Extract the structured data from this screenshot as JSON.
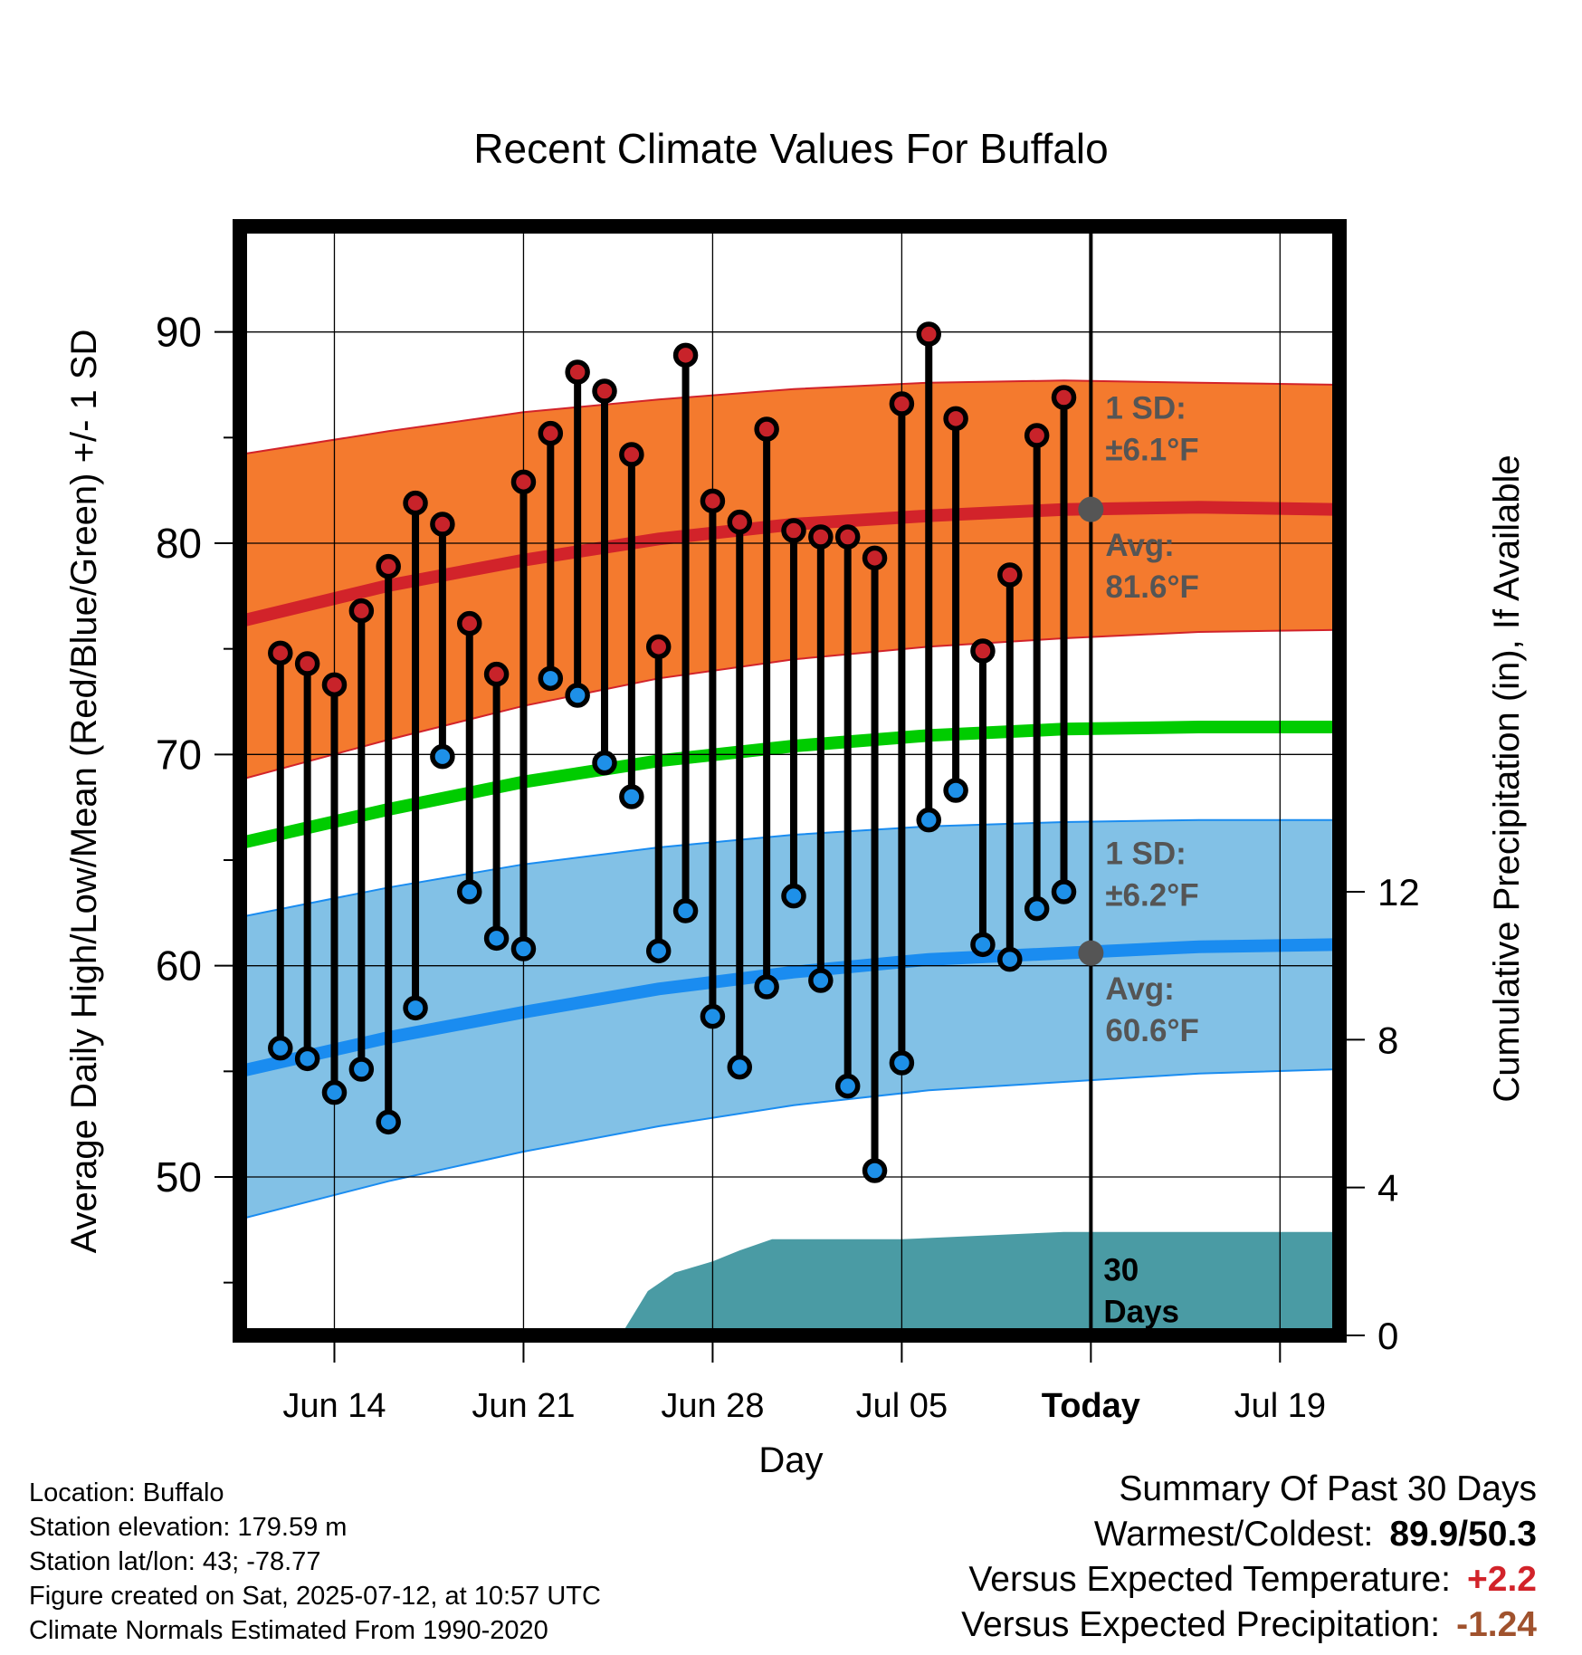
{
  "chart_data": {
    "type": "range-dot",
    "title": "Recent Climate Values For Buffalo",
    "xlabel": "Day",
    "ylabel": "Average Daily High/Low/Mean (Red/Blue/Green) +/- 1 SD",
    "y2label": "Cumulative Precipitation (in), If Available",
    "x_tick_labels": [
      "Jun 14",
      "Jun 21",
      "Jun 28",
      "Jul 05",
      "Today",
      "Jul 19"
    ],
    "x_tick_days": [
      3,
      10,
      17,
      24,
      31,
      38
    ],
    "xlim_days": [
      -0.5,
      40.2
    ],
    "ylim": [
      42.5,
      95
    ],
    "y_ticks": [
      50,
      60,
      70,
      80,
      90
    ],
    "y2lim": [
      0,
      30
    ],
    "y2_ticks": [
      0,
      4,
      8,
      12
    ],
    "days_since_jun11": [
      1,
      2,
      3,
      4,
      5,
      6,
      7,
      8,
      9,
      10,
      11,
      12,
      13,
      14,
      15,
      16,
      17,
      18,
      19,
      20,
      21,
      22,
      23,
      24,
      25,
      26,
      27,
      28,
      29,
      30
    ],
    "daily_highs": [
      74.8,
      74.3,
      73.3,
      76.8,
      78.9,
      81.9,
      80.9,
      76.2,
      73.8,
      82.9,
      85.2,
      88.1,
      87.2,
      84.2,
      75.1,
      88.9,
      82.0,
      81.0,
      85.4,
      80.6,
      80.3,
      80.3,
      79.3,
      86.6,
      89.9,
      85.9,
      74.9,
      78.5,
      85.1,
      86.9
    ],
    "daily_lows": [
      56.1,
      55.6,
      54.0,
      55.1,
      52.6,
      58.0,
      69.9,
      63.5,
      61.3,
      60.8,
      73.6,
      72.8,
      69.6,
      68.0,
      60.7,
      62.6,
      57.6,
      55.2,
      59.0,
      63.3,
      59.3,
      54.3,
      50.3,
      55.4,
      66.9,
      68.3,
      61.0,
      60.3,
      62.7,
      63.5
    ],
    "normal_high": {
      "days": [
        -0.5,
        5,
        10,
        15,
        20,
        25,
        30,
        35,
        40.2
      ],
      "mean": [
        76.3,
        78.0,
        79.2,
        80.2,
        80.9,
        81.3,
        81.6,
        81.7,
        81.6
      ],
      "upper": [
        84.2,
        85.3,
        86.2,
        86.8,
        87.3,
        87.6,
        87.7,
        87.6,
        87.5
      ],
      "lower": [
        68.8,
        70.7,
        72.3,
        73.6,
        74.5,
        75.1,
        75.5,
        75.8,
        75.9
      ]
    },
    "normal_low": {
      "days": [
        -0.5,
        5,
        10,
        15,
        20,
        25,
        30,
        35,
        40.2
      ],
      "mean": [
        55.0,
        56.6,
        57.8,
        58.9,
        59.7,
        60.3,
        60.6,
        60.9,
        61.0
      ],
      "upper": [
        62.3,
        63.7,
        64.8,
        65.6,
        66.2,
        66.6,
        66.8,
        66.9,
        66.9
      ],
      "lower": [
        48.0,
        49.8,
        51.2,
        52.4,
        53.4,
        54.1,
        54.5,
        54.9,
        55.1
      ]
    },
    "normal_mean": {
      "days": [
        -0.5,
        5,
        10,
        15,
        20,
        25,
        30,
        35,
        40.2
      ],
      "mean": [
        65.8,
        67.4,
        68.7,
        69.7,
        70.4,
        70.9,
        71.2,
        71.3,
        71.3
      ]
    },
    "precip_cumulative": {
      "days": [
        13.6,
        14.6,
        15.6,
        17.0,
        18.0,
        19.2,
        24.0,
        27.0,
        30.0,
        40.2
      ],
      "values": [
        0,
        1.2,
        1.7,
        2.0,
        2.3,
        2.6,
        2.6,
        2.7,
        2.8,
        2.8
      ]
    },
    "annotations": {
      "high_sd": [
        "1 SD:",
        "±6.1°F"
      ],
      "high_avg": [
        "Avg:",
        "81.6°F"
      ],
      "low_sd": [
        "1 SD:",
        "±6.2°F"
      ],
      "low_avg": [
        "Avg:",
        "60.6°F"
      ],
      "days": [
        "30",
        "Days"
      ]
    },
    "today_high_avg": 81.6,
    "today_low_avg": 60.6,
    "colors": {
      "high_band": "#f47a2e",
      "high_line": "#d2232a",
      "low_band": "#82c1e6",
      "low_line": "#1a8cf0",
      "mean_line": "#00cc00",
      "precip": "#4a9ba4",
      "high_dot": "#c8232a",
      "low_dot": "#1e90e8",
      "annotation": "#555555"
    },
    "grid": true
  },
  "info": {
    "location": "Location: Buffalo",
    "elevation": "Station elevation: 179.59 m",
    "latlon": "Station lat/lon: 43; -78.77",
    "created": "Figure created on Sat, 2025-07-12, at 10:57 UTC",
    "normals": "Climate Normals Estimated From 1990-2020"
  },
  "summary": {
    "heading": "Summary Of Past 30 Days",
    "warm_cold_label": "Warmest/Coldest:",
    "warm_cold_value": "89.9/50.3",
    "temp_label": "Versus Expected Temperature:",
    "temp_value": "+2.2",
    "temp_color": "#d2232a",
    "precip_label": "Versus Expected Precipitation:",
    "precip_value": "-1.24",
    "precip_color": "#a0522d"
  }
}
